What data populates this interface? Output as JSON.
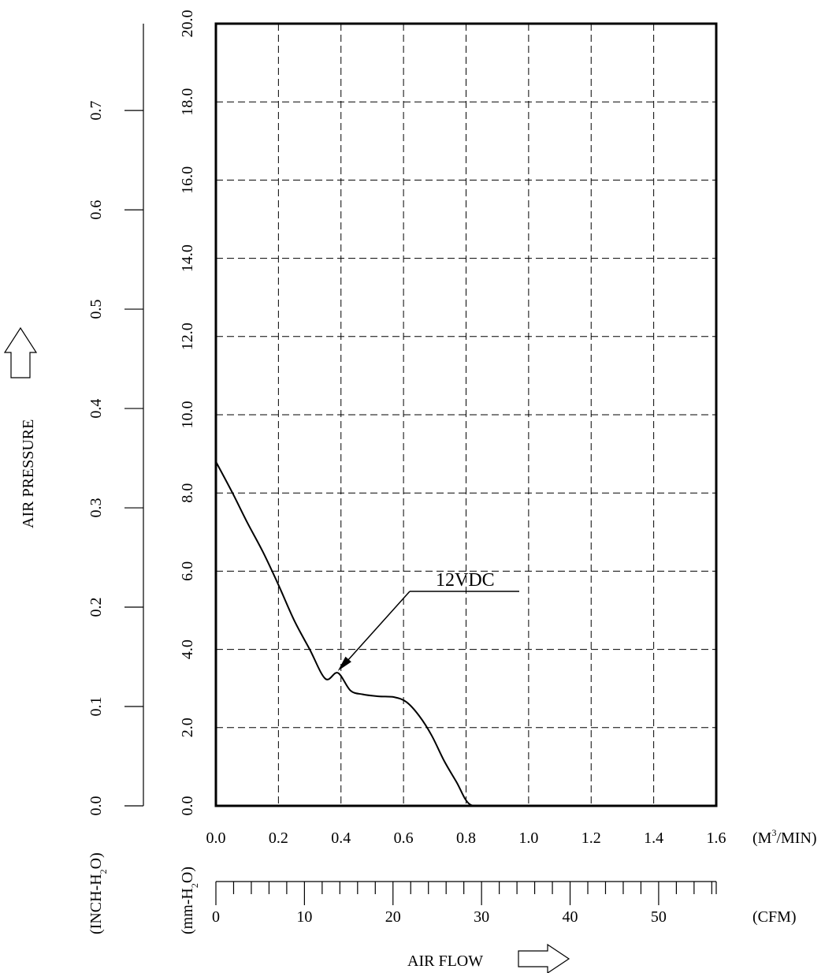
{
  "chart_data": {
    "type": "line",
    "x_axis_primary": {
      "unit_label": "(M³/MIN)",
      "unit_base": "(M",
      "unit_sup": "3",
      "unit_tail": "/MIN)",
      "range": [
        0,
        1.6
      ],
      "ticks": [
        "0.0",
        "0.2",
        "0.4",
        "0.6",
        "0.8",
        "1.0",
        "1.2",
        "1.4",
        "1.6"
      ]
    },
    "x_axis_secondary": {
      "unit_label": "(CFM)",
      "range": [
        0,
        56.5
      ],
      "major_ticks": [
        "0",
        "10",
        "20",
        "30",
        "40",
        "50"
      ]
    },
    "y_axis_primary": {
      "unit_label": "(mm-H₂O)",
      "unit_base": "(mm-H",
      "unit_sub": "2",
      "unit_tail": "O)",
      "range": [
        0,
        20
      ],
      "ticks": [
        "0.0",
        "2.0",
        "4.0",
        "6.0",
        "8.0",
        "10.0",
        "12.0",
        "14.0",
        "16.0",
        "18.0",
        "20.0"
      ]
    },
    "y_axis_secondary": {
      "unit_label": "(INCH-H₂O)",
      "unit_base": "(INCH-H",
      "unit_sub": "2",
      "unit_tail": "O)",
      "ticks": [
        "0.0",
        "0.1",
        "0.2",
        "0.3",
        "0.4",
        "0.5",
        "0.6",
        "0.7"
      ]
    },
    "xlabel": "AIR FLOW",
    "ylabel": "AIR PRESSURE",
    "grid": true,
    "series": [
      {
        "name": "12VDC",
        "x": [
          0.0,
          0.05,
          0.1,
          0.15,
          0.2,
          0.25,
          0.3,
          0.35,
          0.39,
          0.43,
          0.47,
          0.52,
          0.57,
          0.61,
          0.65,
          0.69,
          0.73,
          0.77,
          0.81,
          0.865
        ],
        "y": [
          8.8,
          8.05,
          7.25,
          6.5,
          5.65,
          4.75,
          4.0,
          3.25,
          3.4,
          2.95,
          2.85,
          2.8,
          2.78,
          2.65,
          2.3,
          1.8,
          1.15,
          0.6,
          0.05,
          0.0
        ]
      }
    ],
    "annotation": {
      "text": "12VDC",
      "points_to": {
        "x": 0.39,
        "y": 3.45
      }
    }
  }
}
